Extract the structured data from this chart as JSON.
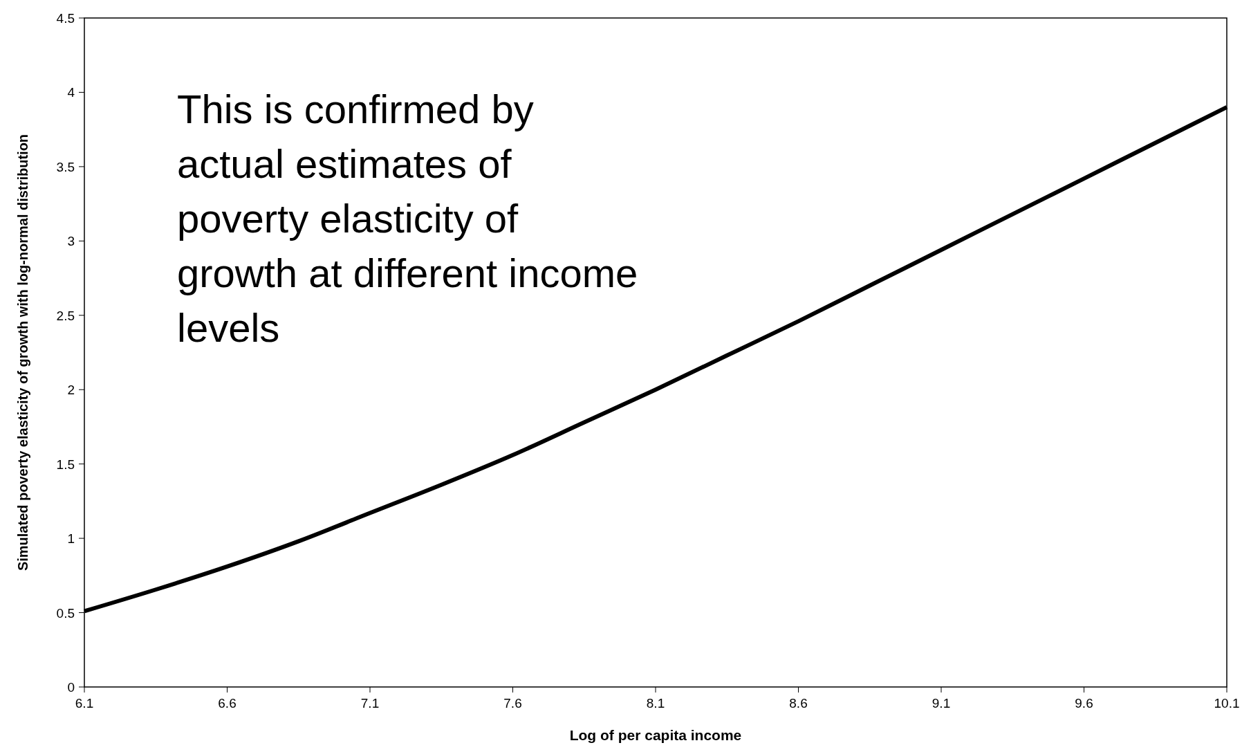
{
  "chart_data": {
    "type": "line",
    "xlabel": "Log of per capita income",
    "ylabel": "Simulated poverty elasticity of growth with log-normal distribution",
    "annotations": [
      "This is confirmed by actual estimates of poverty elasticity of growth at different income levels"
    ],
    "x": [
      6.1,
      6.35,
      6.6,
      6.85,
      7.1,
      7.35,
      7.6,
      7.85,
      8.1,
      8.35,
      8.6,
      8.85,
      9.1,
      9.35,
      9.6,
      9.85,
      10.1
    ],
    "series": [
      {
        "color": "#000000",
        "values": [
          0.51,
          0.655,
          0.81,
          0.98,
          1.17,
          1.36,
          1.56,
          1.78,
          2.0,
          2.23,
          2.46,
          2.7,
          2.94,
          3.18,
          3.42,
          3.66,
          3.9
        ]
      }
    ],
    "xlim": [
      6.1,
      10.1
    ],
    "xticks": [
      6.1,
      6.6,
      7.1,
      7.6,
      8.1,
      8.6,
      9.1,
      9.6,
      10.1
    ],
    "ylim": [
      0,
      4.5
    ],
    "yticks": [
      0,
      0.5,
      1,
      1.5,
      2,
      2.5,
      3,
      3.5,
      4,
      4.5
    ],
    "grid": false,
    "marker": "none",
    "line_style": "solid"
  }
}
